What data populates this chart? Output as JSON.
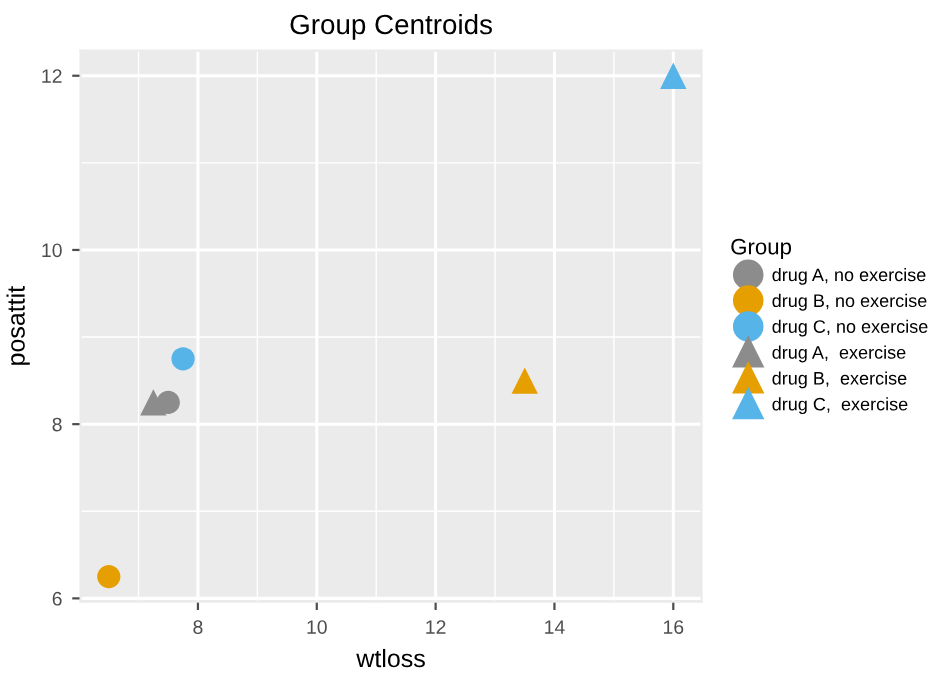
{
  "chart_data": {
    "type": "scatter",
    "title": "Group Centroids",
    "xlabel": "wtloss",
    "ylabel": "posattit",
    "legend_title": "Group",
    "series": [
      {
        "name": "drug A, no exercise",
        "color": "#8c8c8c",
        "marker": "circle",
        "x": [
          7.5
        ],
        "values": [
          8.25
        ]
      },
      {
        "name": "drug B, no exercise",
        "color": "#e69f00",
        "marker": "circle",
        "x": [
          6.5
        ],
        "values": [
          6.25
        ]
      },
      {
        "name": "drug C, no exercise",
        "color": "#56b4e9",
        "marker": "circle",
        "x": [
          7.75
        ],
        "values": [
          8.75
        ]
      },
      {
        "name": "drug A,  exercise",
        "color": "#8c8c8c",
        "marker": "triangle",
        "x": [
          7.25
        ],
        "values": [
          8.25
        ]
      },
      {
        "name": "drug B,  exercise",
        "color": "#e69f00",
        "marker": "triangle",
        "x": [
          13.5
        ],
        "values": [
          8.5
        ]
      },
      {
        "name": "drug C,  exercise",
        "color": "#56b4e9",
        "marker": "triangle",
        "x": [
          16
        ],
        "values": [
          12
        ]
      }
    ],
    "xlim": [
      6.025,
      16.475
    ],
    "ylim": [
      5.9625,
      12.2875
    ],
    "xticks": [
      8,
      10,
      12,
      14,
      16
    ],
    "yticks": [
      6,
      8,
      10,
      12
    ],
    "grid": true,
    "legend": "right"
  }
}
